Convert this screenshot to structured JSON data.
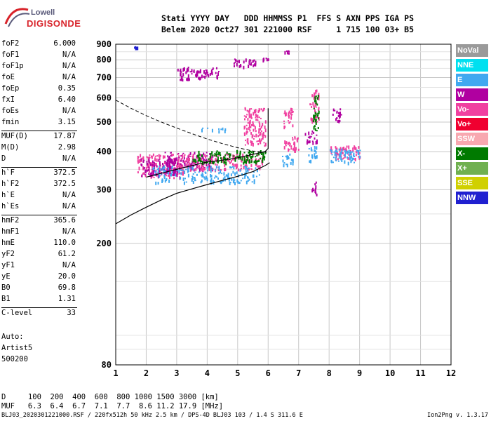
{
  "logo": {
    "line1": "Lowell",
    "line2": "DIGISONDE"
  },
  "header": {
    "line1": "Stati YYYY DAY   DDD HHMMSS P1  FFS S AXN PPS IGA PS",
    "line2": "Belem 2020 Oct27 301 221000 RSF     1 715 100 03+ B5"
  },
  "params_group1": [
    {
      "key": "foF2",
      "value": "6.000"
    },
    {
      "key": "foF1",
      "value": "N/A"
    },
    {
      "key": "foF1p",
      "value": "N/A"
    },
    {
      "key": "foE",
      "value": "N/A"
    },
    {
      "key": "foEp",
      "value": "0.35"
    },
    {
      "key": "fxI",
      "value": "6.40"
    },
    {
      "key": "foEs",
      "value": "N/A"
    },
    {
      "key": "fmin",
      "value": "3.15"
    }
  ],
  "params_group2": [
    {
      "key": "MUF(D)",
      "value": "17.87"
    },
    {
      "key": "M(D)",
      "value": "2.98"
    },
    {
      "key": "D",
      "value": "N/A"
    }
  ],
  "params_group3": [
    {
      "key": "h`F",
      "value": "372.5"
    },
    {
      "key": "h`F2",
      "value": "372.5"
    },
    {
      "key": "h`E",
      "value": "N/A"
    },
    {
      "key": "h`Es",
      "value": "N/A"
    }
  ],
  "params_group4": [
    {
      "key": "hmF2",
      "value": "365.6"
    },
    {
      "key": "hmF1",
      "value": "N/A"
    },
    {
      "key": "hmE",
      "value": "110.0"
    },
    {
      "key": "yF2",
      "value": "61.2"
    },
    {
      "key": "yF1",
      "value": "N/A"
    },
    {
      "key": "yE",
      "value": "20.0"
    },
    {
      "key": "B0",
      "value": "69.8"
    },
    {
      "key": "B1",
      "value": "1.31"
    }
  ],
  "params_group5": [
    {
      "key": "C-level",
      "value": "33"
    }
  ],
  "auto_text": [
    "Auto:",
    "Artist5",
    "500200"
  ],
  "legend": [
    {
      "label": "NoVal",
      "color": "#9a9a9a"
    },
    {
      "label": "NNE",
      "color": "#00e0f0"
    },
    {
      "label": "E",
      "color": "#40a8f0"
    },
    {
      "label": "W",
      "color": "#b000a0"
    },
    {
      "label": "Vo-",
      "color": "#f040a0"
    },
    {
      "label": "Vo+",
      "color": "#f00030"
    },
    {
      "label": "SSW",
      "color": "#f8a8b0"
    },
    {
      "label": "X-",
      "color": "#007a00"
    },
    {
      "label": "X+",
      "color": "#70b050"
    },
    {
      "label": "SSE",
      "color": "#d0d000"
    },
    {
      "label": "NNW",
      "color": "#2020d0"
    }
  ],
  "d_table": {
    "line1": "D     100  200  400  600  800 1000 1500 3000 [km]",
    "line2": "MUF   6.3  6.4  6.7  7.1  7.7  8.6 11.2 17.9 [MHz]"
  },
  "footer": {
    "left": "BLJ03_2020301221000.RSF / 220fx512h 50 kHz 2.5 km / DPS-4D BLJ03 103 / 1.4 S 311.6 E",
    "right": "Ion2Png v. 1.3.17"
  },
  "chart_data": {
    "type": "scatter",
    "x_ticks": [
      "1",
      "2",
      "3",
      "4",
      "5",
      "6",
      "7",
      "8",
      "9",
      "10",
      "11",
      "12"
    ],
    "y_ticks": [
      "80",
      "200",
      "300",
      "400",
      "500",
      "600",
      "700",
      "800",
      "900"
    ],
    "xlim": [
      1,
      12
    ],
    "y_scale": "log",
    "ylim": [
      80,
      900
    ],
    "grid": true,
    "legend_placement": "right",
    "profile_curve": [
      [
        1.0,
        232
      ],
      [
        1.5,
        248
      ],
      [
        2.0,
        263
      ],
      [
        2.5,
        278
      ],
      [
        3.0,
        292
      ],
      [
        3.5,
        302
      ],
      [
        4.0,
        312
      ],
      [
        4.5,
        322
      ],
      [
        5.0,
        332
      ],
      [
        5.5,
        344
      ],
      [
        5.9,
        360
      ],
      [
        6.05,
        368
      ]
    ],
    "trace_curve": [
      [
        2.0,
        330
      ],
      [
        3.0,
        350
      ],
      [
        4.0,
        370
      ],
      [
        4.5,
        375
      ],
      [
        5.0,
        382
      ],
      [
        5.5,
        392
      ],
      [
        5.9,
        400
      ],
      [
        6.0,
        410
      ],
      [
        6.0,
        555
      ]
    ],
    "muf_dashed_curve": [
      [
        1.0,
        590
      ],
      [
        1.5,
        555
      ],
      [
        2.0,
        525
      ],
      [
        2.5,
        500
      ],
      [
        3.0,
        478
      ],
      [
        3.5,
        458
      ],
      [
        4.0,
        440
      ],
      [
        4.5,
        425
      ],
      [
        5.0,
        412
      ],
      [
        5.5,
        402
      ],
      [
        6.0,
        398
      ]
    ],
    "echo_clusters": [
      {
        "x": [
          1.7,
          3.2
        ],
        "y": [
          330,
          395
        ],
        "color": "#f040a0"
      },
      {
        "x": [
          1.8,
          3.0
        ],
        "y": [
          335,
          380
        ],
        "color": "#b000a0"
      },
      {
        "x": [
          2.6,
          4.2
        ],
        "y": [
          350,
          400
        ],
        "color": "#b000a0"
      },
      {
        "x": [
          3.0,
          5.8
        ],
        "y": [
          350,
          395
        ],
        "color": "#f040a0"
      },
      {
        "x": [
          2.2,
          5.7
        ],
        "y": [
          318,
          360
        ],
        "color": "#40a8f0"
      },
      {
        "x": [
          3.5,
          5.9
        ],
        "y": [
          370,
          405
        ],
        "color": "#007a00"
      },
      {
        "x": [
          6.5,
          7.0
        ],
        "y": [
          405,
          450
        ],
        "color": "#f040a0"
      },
      {
        "x": [
          7.2,
          7.6
        ],
        "y": [
          430,
          470
        ],
        "color": "#b000a0"
      },
      {
        "x": [
          7.35,
          7.65
        ],
        "y": [
          500,
          640
        ],
        "color": "#f040a0"
      },
      {
        "x": [
          7.45,
          7.65
        ],
        "y": [
          470,
          620
        ],
        "color": "#007a00"
      },
      {
        "x": [
          8.1,
          8.4
        ],
        "y": [
          505,
          560
        ],
        "color": "#b000a0"
      },
      {
        "x": [
          6.5,
          6.8
        ],
        "y": [
          480,
          560
        ],
        "color": "#f040a0"
      },
      {
        "x": [
          3.0,
          3.6
        ],
        "y": [
          690,
          760
        ],
        "color": "#b000a0"
      },
      {
        "x": [
          3.6,
          4.4
        ],
        "y": [
          700,
          760
        ],
        "color": "#b000a0"
      },
      {
        "x": [
          4.8,
          5.6
        ],
        "y": [
          760,
          810
        ],
        "color": "#b000a0"
      },
      {
        "x": [
          5.8,
          6.0
        ],
        "y": [
          800,
          830
        ],
        "color": "#b000a0"
      },
      {
        "x": [
          6.5,
          6.7
        ],
        "y": [
          845,
          860
        ],
        "color": "#b000a0"
      },
      {
        "x": [
          6.4,
          6.8
        ],
        "y": [
          365,
          395
        ],
        "color": "#40a8f0"
      },
      {
        "x": [
          7.3,
          7.6
        ],
        "y": [
          370,
          420
        ],
        "color": "#40a8f0"
      },
      {
        "x": [
          8.0,
          9.0
        ],
        "y": [
          380,
          420
        ],
        "color": "#f040a0"
      },
      {
        "x": [
          8.0,
          9.0
        ],
        "y": [
          370,
          410
        ],
        "color": "#40a8f0"
      },
      {
        "x": [
          3.8,
          4.6
        ],
        "y": [
          470,
          480
        ],
        "color": "#40a8f0"
      },
      {
        "x": [
          7.4,
          7.6
        ],
        "y": [
          290,
          320
        ],
        "color": "#b000a0"
      },
      {
        "x": [
          1.6,
          1.7
        ],
        "y": [
          880,
          890
        ],
        "color": "#2020d0"
      },
      {
        "x": [
          5.2,
          5.9
        ],
        "y": [
          420,
          560
        ],
        "color": "#f040a0"
      }
    ]
  }
}
